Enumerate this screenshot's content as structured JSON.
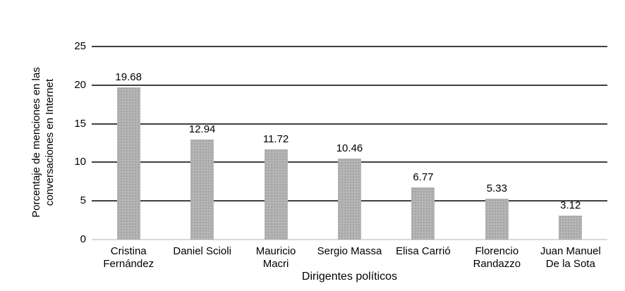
{
  "chart_data": {
    "type": "bar",
    "title": "",
    "xlabel": "Dirigentes políticos",
    "ylabel": "Porcentaje de menciones en las\nconversaciones en Internet",
    "categories": [
      "Cristina\nFernández",
      "Daniel Scioli",
      "Mauricio\nMacri",
      "Sergio Massa",
      "Elisa Carrió",
      "Florencio\nRandazzo",
      "Juan Manuel\nDe la Sota"
    ],
    "values": [
      19.68,
      12.94,
      11.72,
      10.46,
      6.77,
      5.33,
      3.12
    ],
    "value_labels": [
      "19.68",
      "12.94",
      "11.72",
      "10.46",
      "6.77",
      "5.33",
      "3.12"
    ],
    "ylim": [
      0,
      25
    ],
    "yticks": [
      0,
      5,
      10,
      15,
      20,
      25
    ],
    "grid": "horizontal gridlines at 5,10,15,20,25",
    "legend": "none",
    "colors": {
      "bar_fill": "#b5b5b5",
      "bar_dot": "#9c9c9c",
      "gridline": "#404040",
      "baseline": "#d9d9d9",
      "text": "#000000",
      "background": "#ffffff"
    }
  }
}
